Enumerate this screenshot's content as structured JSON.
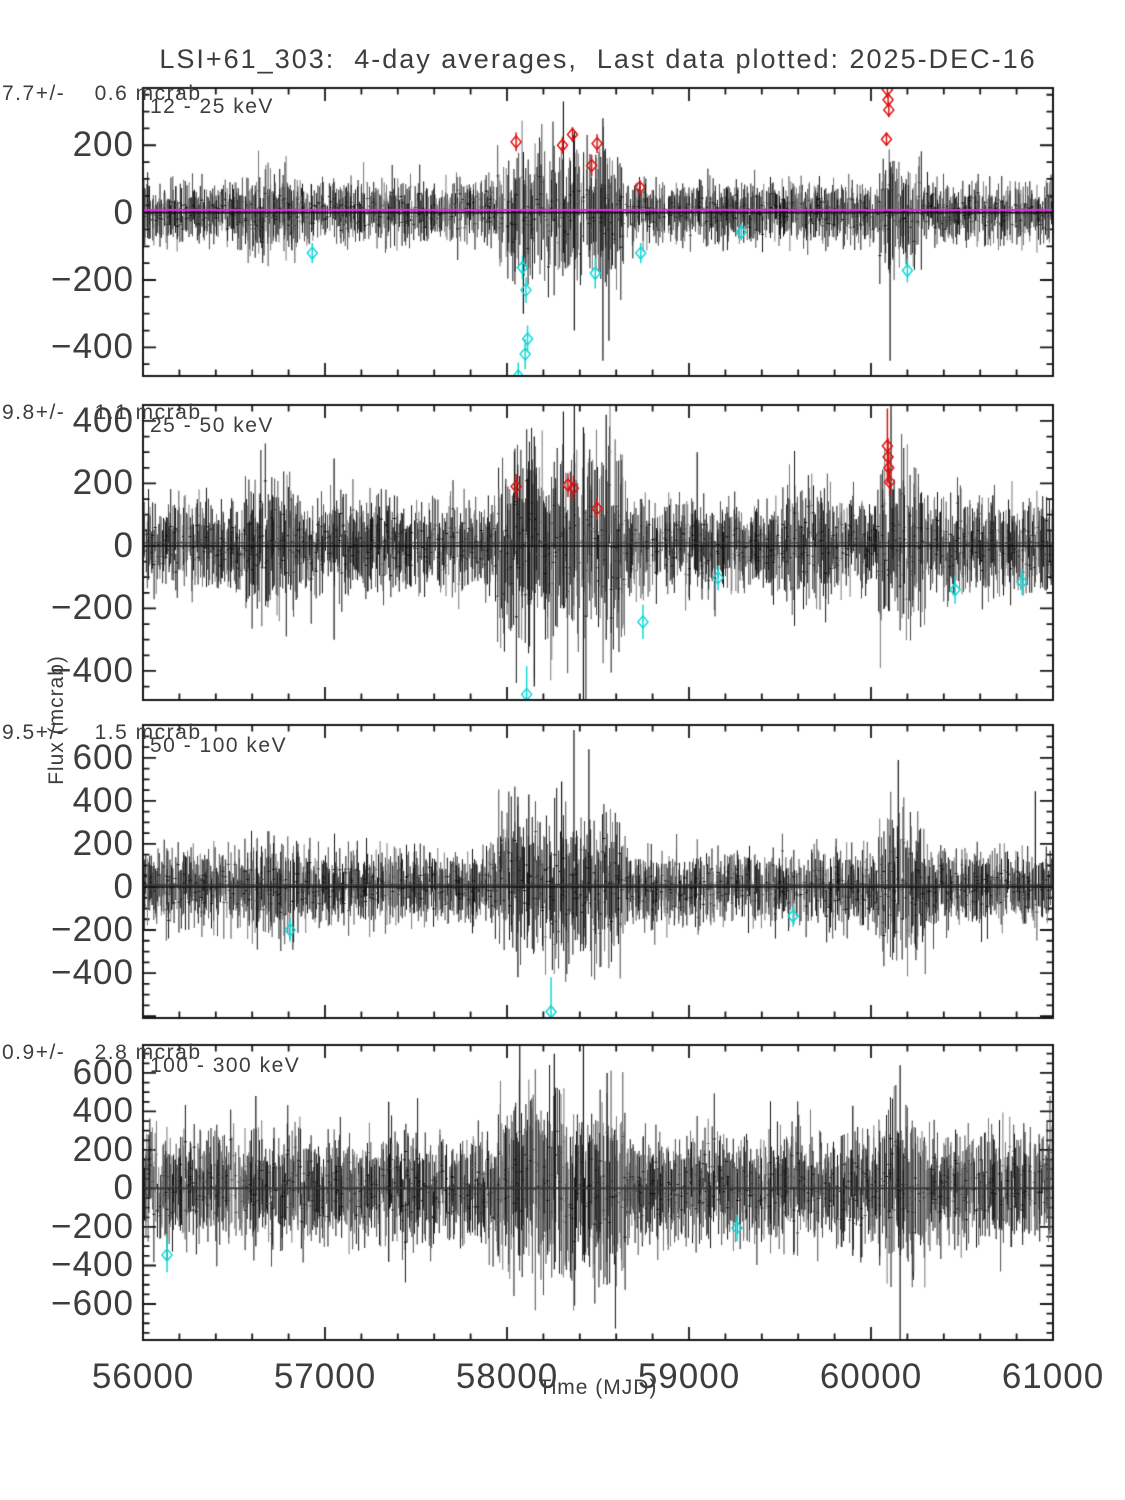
{
  "title": "LSI+61_303:  4-day averages,  Last data plotted: 2025-DEC-16",
  "x_axis": {
    "label": "Time (MJD)",
    "min": 56000,
    "max": 61000,
    "major_ticks": [
      56000,
      57000,
      58000,
      59000,
      60000,
      61000
    ],
    "tick_labels": [
      "56000",
      "57000",
      "58000",
      "59000",
      "60000",
      "61000"
    ],
    "minor_tick_step": 200
  },
  "y_axis": {
    "label": "Flux (mcrab)"
  },
  "colors": {
    "background": "#ffffff",
    "axis": "#161616",
    "text": "#3d3d3d",
    "data_dark": "#121212",
    "data_mid": "#4a4a4a",
    "data_light": "#787878",
    "zero_line": "#111111",
    "mean_line_panel1": "#e22be2",
    "mean_line_other": "#3a3a3a",
    "high_outlier": "#dd1111",
    "low_outlier": "#0fd8d8"
  },
  "chart_data": [
    {
      "type": "scatter-errorbar",
      "band_label": "12 - 25 keV",
      "stat_label": "7.7+/-    0.6 mcrab",
      "mean_flux_mcrab": 7.7,
      "mean_flux_err_mcrab": 0.6,
      "x_range_mjd": [
        56000,
        61000
      ],
      "cadence_days": 4,
      "ylim": [
        -485,
        370
      ],
      "y_ticks": [
        200,
        0,
        -200,
        -400
      ],
      "y_tick_labels": [
        "200",
        "0",
        "−200",
        "−400"
      ],
      "y_minor_step": 50,
      "noise": {
        "sigma": 26,
        "bar_base": 34,
        "bar_var": 26,
        "skip": 0.14,
        "seed": 101
      },
      "burst_windows": [
        [
          56560,
          56840,
          1.35
        ],
        [
          57950,
          58650,
          2.1
        ],
        [
          60040,
          60280,
          1.9
        ]
      ],
      "extra_bars": [
        [
          58310,
          330,
          -120
        ],
        [
          58527,
          280,
          -440
        ],
        [
          58370,
          240,
          -350
        ],
        [
          60105,
          150,
          -440
        ],
        [
          58560,
          100,
          -380
        ],
        [
          58090,
          180,
          -300
        ]
      ],
      "flagged_high": [
        [
          58050,
          210,
          28
        ],
        [
          58305,
          200,
          25
        ],
        [
          58360,
          232,
          22
        ],
        [
          58465,
          140,
          32
        ],
        [
          58495,
          205,
          28
        ],
        [
          58730,
          75,
          22
        ],
        [
          60085,
          218,
          20
        ],
        [
          60090,
          365,
          25
        ],
        [
          60094,
          335,
          22
        ],
        [
          60098,
          305,
          22
        ]
      ],
      "flagged_low": [
        [
          56930,
          -120,
          30
        ],
        [
          58062,
          -485,
          40
        ],
        [
          58085,
          -163,
          35
        ],
        [
          58100,
          -420,
          45
        ],
        [
          58104,
          -230,
          38
        ],
        [
          58113,
          -375,
          40
        ],
        [
          58485,
          -180,
          45
        ],
        [
          58735,
          -120,
          30
        ],
        [
          59287,
          -58,
          25
        ],
        [
          60200,
          -172,
          35
        ]
      ]
    },
    {
      "type": "scatter-errorbar",
      "band_label": "25 - 50 keV",
      "stat_label": "9.8+/-    1.1 mcrab",
      "mean_flux_mcrab": 9.8,
      "mean_flux_err_mcrab": 1.1,
      "x_range_mjd": [
        56000,
        61000
      ],
      "cadence_days": 4,
      "ylim": [
        -493,
        451
      ],
      "y_ticks": [
        400,
        200,
        0,
        -200,
        -400
      ],
      "y_tick_labels": [
        "400",
        "200",
        "0",
        "−200",
        "−400"
      ],
      "y_minor_step": 50,
      "noise": {
        "sigma": 46,
        "bar_base": 58,
        "bar_var": 36,
        "skip": 0.1,
        "seed": 202
      },
      "burst_windows": [
        [
          56560,
          56860,
          1.5
        ],
        [
          57950,
          58650,
          2.2
        ],
        [
          59540,
          59780,
          1.3
        ],
        [
          60040,
          60300,
          1.9
        ]
      ],
      "extra_bars": [
        [
          58310,
          430,
          -200
        ],
        [
          58370,
          460,
          -100
        ],
        [
          58420,
          380,
          -520
        ],
        [
          59045,
          300,
          -80
        ],
        [
          58150,
          350,
          -450
        ],
        [
          60110,
          455,
          -120
        ],
        [
          57050,
          280,
          -300
        ],
        [
          58545,
          420,
          -300
        ]
      ],
      "flagged_high": [
        [
          58050,
          190,
          40
        ],
        [
          58335,
          195,
          38
        ],
        [
          58365,
          185,
          40
        ],
        [
          58495,
          120,
          35
        ],
        [
          60090,
          320,
          120
        ],
        [
          60094,
          285,
          60
        ],
        [
          60098,
          250,
          50
        ],
        [
          60102,
          205,
          45
        ]
      ],
      "flagged_low": [
        [
          58108,
          -475,
          90
        ],
        [
          58747,
          -243,
          55
        ],
        [
          59160,
          -102,
          40
        ],
        [
          60462,
          -140,
          45
        ],
        [
          60830,
          -115,
          40
        ]
      ]
    },
    {
      "type": "scatter-errorbar",
      "band_label": "50 - 100 keV",
      "stat_label": "9.5+/-    1.5 mcrab",
      "mean_flux_mcrab": 9.5,
      "mean_flux_err_mcrab": 1.5,
      "x_range_mjd": [
        56000,
        61000
      ],
      "cadence_days": 4,
      "ylim": [
        -609,
        753
      ],
      "y_ticks": [
        600,
        400,
        200,
        0,
        -200,
        -400
      ],
      "y_tick_labels": [
        "600",
        "400",
        "200",
        "0",
        "−200",
        "−400"
      ],
      "y_minor_step": 50,
      "noise": {
        "sigma": 52,
        "bar_base": 68,
        "bar_var": 44,
        "skip": 0.1,
        "seed": 303
      },
      "burst_windows": [
        [
          56560,
          56860,
          1.3
        ],
        [
          57950,
          58650,
          2.0
        ],
        [
          60040,
          60300,
          1.8
        ]
      ],
      "extra_bars": [
        [
          58368,
          730,
          120
        ],
        [
          58120,
          430,
          -180
        ],
        [
          60150,
          590,
          -80
        ],
        [
          60903,
          445,
          -60
        ],
        [
          58450,
          640,
          -20
        ],
        [
          58300,
          490,
          -260
        ],
        [
          58060,
          420,
          -420
        ]
      ],
      "flagged_high": [],
      "flagged_low": [
        [
          56808,
          -200,
          55
        ],
        [
          58242,
          -580,
          160
        ],
        [
          59572,
          -135,
          50
        ]
      ]
    },
    {
      "type": "scatter-errorbar",
      "band_label": "100 - 300 keV",
      "stat_label": "0.9+/-    2.8 mcrab",
      "mean_flux_mcrab": 0.9,
      "mean_flux_err_mcrab": 2.8,
      "x_range_mjd": [
        56000,
        61000
      ],
      "cadence_days": 4,
      "ylim": [
        -787,
        745
      ],
      "y_ticks": [
        600,
        400,
        200,
        0,
        -200,
        -400,
        -600
      ],
      "y_tick_labels": [
        "600",
        "400",
        "200",
        "0",
        "−200",
        "−400",
        "−600"
      ],
      "y_minor_step": 50,
      "noise": {
        "sigma": 88,
        "bar_base": 118,
        "bar_var": 66,
        "skip": 0.08,
        "seed": 404
      },
      "burst_windows": [
        [
          57950,
          58650,
          1.7
        ],
        [
          60040,
          60300,
          1.5
        ]
      ],
      "extra_bars": [
        [
          58070,
          760,
          -350
        ],
        [
          58260,
          700,
          -420
        ],
        [
          60160,
          640,
          -800
        ],
        [
          58550,
          600,
          -500
        ],
        [
          56620,
          480,
          -300
        ],
        [
          59900,
          430,
          -350
        ],
        [
          57350,
          450,
          -380
        ],
        [
          58420,
          740,
          -200
        ]
      ],
      "flagged_high": [],
      "flagged_low": [
        [
          56132,
          -345,
          90
        ],
        [
          59264,
          -205,
          70
        ]
      ]
    }
  ]
}
